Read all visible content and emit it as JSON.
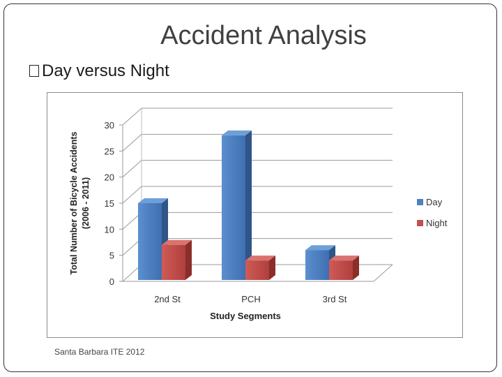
{
  "slide": {
    "title": "Accident Analysis",
    "bullet": "Day versus Night",
    "footer": "Santa Barbara ITE 2012"
  },
  "chart_data": {
    "type": "bar",
    "categories": [
      "2nd St",
      "PCH",
      "3rd St"
    ],
    "series": [
      {
        "name": "Day",
        "values": [
          15,
          28,
          6
        ],
        "color": "#4f81bd"
      },
      {
        "name": "Night",
        "values": [
          7,
          4,
          4
        ],
        "color": "#c0504d"
      }
    ],
    "xlabel": "Study Segments",
    "ylabel_lines": [
      "Total Number of Bicycle Accidents",
      "(2006 - 2011)"
    ],
    "ylim": [
      0,
      30
    ],
    "yticks": [
      0,
      5,
      10,
      15,
      20,
      25,
      30
    ],
    "grid": true,
    "legend": "right",
    "style": "3d-clustered-column"
  }
}
